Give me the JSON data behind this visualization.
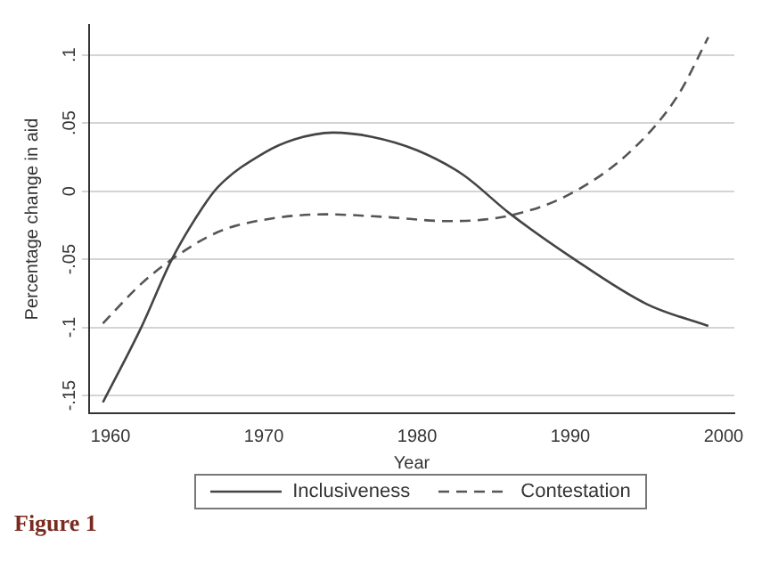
{
  "chart_data": {
    "type": "line",
    "xlabel": "Year",
    "ylabel": "Percentage change in aid",
    "xlim": [
      1958.6,
      2000.7
    ],
    "xticks": [
      1960,
      1970,
      1980,
      1990,
      2000
    ],
    "ylim": [
      -0.163,
      0.122
    ],
    "yticks": [
      {
        "value": -0.15,
        "label": "-.15"
      },
      {
        "value": -0.1,
        "label": "-.1"
      },
      {
        "value": -0.05,
        "label": "-.05"
      },
      {
        "value": 0,
        "label": "0"
      },
      {
        "value": 0.05,
        "label": ".05"
      },
      {
        "value": 0.1,
        "label": ".1"
      }
    ],
    "grid": "y",
    "legend": "bottom",
    "marker": "none",
    "annotations": [
      "Figure 1"
    ],
    "series": [
      {
        "name": "Inclusiveness",
        "color": "#444444",
        "line_style": "solid",
        "x": [
          1959.5,
          1962,
          1964,
          1966,
          1967,
          1970,
          1972,
          1974.5,
          1977,
          1980,
          1983,
          1986,
          1990,
          1995,
          1999
        ],
        "values": [
          -0.155,
          -0.1,
          -0.05,
          -0.012,
          0.003,
          0.028,
          0.038,
          0.043,
          0.04,
          0.03,
          0.012,
          -0.016,
          -0.048,
          -0.083,
          -0.099
        ]
      },
      {
        "name": "Contestation",
        "color": "#555555",
        "line_style": "dashed",
        "x": [
          1959.5,
          1962,
          1964,
          1967,
          1970,
          1974,
          1978,
          1982,
          1986,
          1990,
          1994,
          1997,
          1999
        ],
        "values": [
          -0.097,
          -0.068,
          -0.05,
          -0.03,
          -0.021,
          -0.017,
          -0.019,
          -0.022,
          -0.018,
          -0.002,
          0.03,
          0.07,
          0.113
        ]
      }
    ]
  }
}
